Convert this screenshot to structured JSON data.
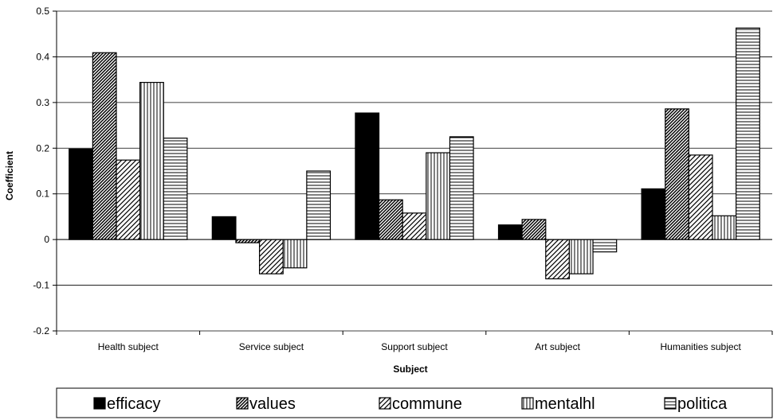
{
  "chart_data": {
    "type": "bar",
    "title": "",
    "xlabel": "Subject",
    "ylabel": "Coefficient",
    "ylim": [
      -0.2,
      0.5
    ],
    "yticks": [
      "-0.2",
      "-0.1",
      "0",
      "0.1",
      "0.2",
      "0.3",
      "0.4",
      "0.5"
    ],
    "grid": "horizontal",
    "legend_position": "bottom",
    "categories": [
      "Health subject",
      "Service subject",
      "Support subject",
      "Art subject",
      "Humanities subject"
    ],
    "series": [
      {
        "name": "efficacy",
        "pattern": "solid-black",
        "values": [
          0.198,
          0.05,
          0.277,
          0.032,
          0.111
        ]
      },
      {
        "name": "values",
        "pattern": "dense-diagonal",
        "values": [
          0.409,
          -0.007,
          0.087,
          0.044,
          0.286
        ]
      },
      {
        "name": "commune",
        "pattern": "diagonal",
        "values": [
          0.174,
          -0.075,
          0.058,
          -0.086,
          0.185
        ]
      },
      {
        "name": "mentalhl",
        "pattern": "vertical-lines",
        "values": [
          0.344,
          -0.062,
          0.19,
          -0.075,
          0.052
        ]
      },
      {
        "name": "politica",
        "pattern": "horizontal-lines",
        "values": [
          0.222,
          0.15,
          0.225,
          -0.027,
          0.463
        ]
      }
    ]
  }
}
